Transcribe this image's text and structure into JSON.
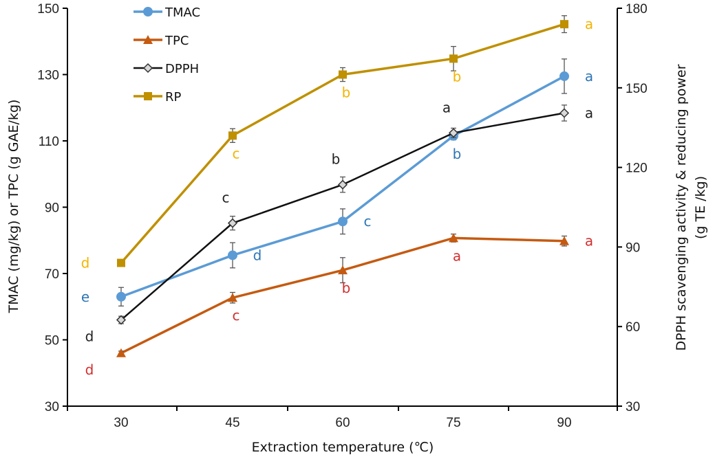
{
  "chart_data": {
    "type": "line",
    "x_label": "Extraction temperature (℃)",
    "y_left_label": "TMAC (mg/kg) or TPC (g GAE/kg)",
    "y_right_label_line1": "DPPH scavenging activity & reducing power",
    "y_right_label_line2": "(g TE /kg)",
    "x_categories": [
      "30",
      "45",
      "60",
      "75",
      "90"
    ],
    "y_left_range": [
      30,
      150
    ],
    "y_left_ticks": [
      30,
      50,
      70,
      90,
      110,
      130,
      150
    ],
    "y_right_range": [
      30,
      180
    ],
    "y_right_ticks": [
      30,
      60,
      90,
      120,
      150,
      180
    ],
    "grid": false,
    "legend_position": "top-left",
    "series": [
      {
        "name": "TMAC",
        "axis": "left",
        "color": "#5b9bd5",
        "marker": "circle",
        "values": [
          63,
          75.5,
          85.7,
          111.5,
          129.5
        ],
        "errors": [
          2.8,
          3.8,
          3.8,
          1.2,
          5.2
        ],
        "letters": [
          "e",
          "d",
          "c",
          "b",
          "a"
        ],
        "letter_color": "#2e75b6",
        "letter_place": [
          "left",
          "right",
          "right",
          "below",
          "right"
        ]
      },
      {
        "name": "TPC",
        "axis": "left",
        "color": "#c55a11",
        "marker": "triangle",
        "values": [
          46,
          62.7,
          71,
          80.7,
          79.8
        ],
        "errors": [
          0.6,
          1.6,
          3.8,
          1.2,
          1.5
        ],
        "letters": [
          "d",
          "c",
          "b",
          "a",
          "a"
        ],
        "letter_color": "#d32f2f",
        "letter_place": [
          "below-left",
          "below",
          "below",
          "below",
          "right"
        ]
      },
      {
        "name": "DPPH",
        "axis": "right",
        "color": "#111111",
        "marker": "diamond",
        "values": [
          62.5,
          99,
          113.5,
          133,
          140.5
        ],
        "errors": [
          1.4,
          2.6,
          2.9,
          1.8,
          3.0
        ],
        "letters": [
          "d",
          "c",
          "b",
          "a",
          "a"
        ],
        "letter_color": "#222222",
        "letter_place": [
          "below-left",
          "above",
          "above",
          "above",
          "right"
        ]
      },
      {
        "name": "RP",
        "axis": "right",
        "color": "#bf9000",
        "marker": "square",
        "values": [
          84,
          132,
          155,
          161,
          174
        ],
        "errors": [
          0.6,
          2.6,
          2.6,
          4.6,
          3.2
        ],
        "letters": [
          "d",
          "c",
          "b",
          "b",
          "a"
        ],
        "letter_color": "#f4b400",
        "letter_place": [
          "left",
          "below",
          "below",
          "below",
          "right"
        ]
      }
    ]
  }
}
